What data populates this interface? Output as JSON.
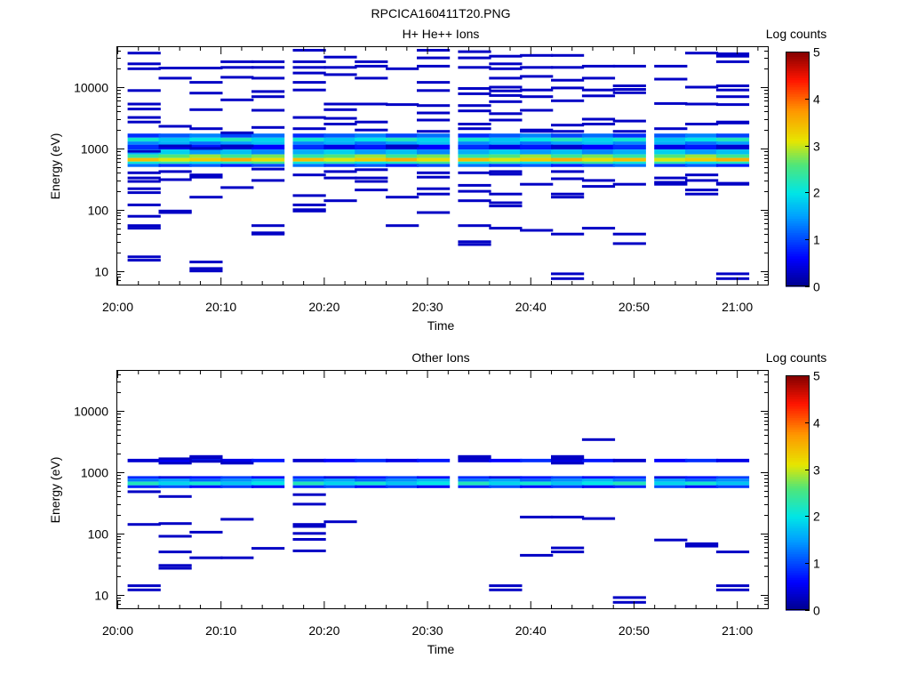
{
  "title": "RPCICA160411T20.PNG",
  "colorbar": {
    "label": "Log counts",
    "ticks": [
      "0",
      "1",
      "2",
      "3",
      "4",
      "5"
    ],
    "range": [
      0,
      5
    ]
  },
  "chart_data": [
    {
      "type": "heatmap",
      "title": "H+ He++ Ions",
      "xlabel": "Time",
      "ylabel": "Energy (eV)",
      "x_tick_labels": [
        "20:00",
        "20:10",
        "20:20",
        "20:30",
        "20:40",
        "20:50",
        "21:00"
      ],
      "x_range_minutes": [
        0,
        63
      ],
      "y_scale": "log",
      "y_range": [
        6,
        45000
      ],
      "y_tick_labels": [
        "10",
        "100",
        "1000",
        "10000"
      ],
      "grid": false,
      "value_unit": "log counts",
      "time_bin_starts": [
        "20:01",
        "20:04",
        "20:07",
        "20:10",
        "20:13",
        "20:17",
        "20:20",
        "20:23",
        "20:26",
        "20:29",
        "20:33",
        "20:36",
        "20:39",
        "20:42",
        "20:45",
        "20:48",
        "20:52",
        "20:55",
        "20:58"
      ],
      "time_bin_minutes": 3.2,
      "persistent_bands": [
        {
          "e_low": 1500,
          "e_high": 1750,
          "value": 1.1
        },
        {
          "e_low": 1300,
          "e_high": 1500,
          "value": 2.0
        },
        {
          "e_low": 1150,
          "e_high": 1300,
          "value": 1.5
        },
        {
          "e_low": 960,
          "e_high": 1150,
          "value": 0.6
        },
        {
          "e_low": 800,
          "e_high": 960,
          "value": 1.6
        },
        {
          "e_low": 700,
          "e_high": 800,
          "value": 2.6
        },
        {
          "e_low": 610,
          "e_high": 700,
          "value": 3.3
        },
        {
          "e_low": 560,
          "e_high": 610,
          "value": 2.2
        },
        {
          "e_low": 500,
          "e_high": 560,
          "value": 1.0
        }
      ],
      "sparse_cells": [
        {
          "t": "20:01",
          "energies": [
            36000,
            24000,
            20000,
            8800,
            5300,
            4400,
            3200,
            2700,
            900,
            400,
            330,
            290,
            220,
            190,
            120,
            78,
            55,
            50,
            17,
            15
          ],
          "value": 0.3
        },
        {
          "t": "20:04",
          "energies": [
            20500,
            14000,
            2300,
            1100,
            420,
            310,
            95,
            90
          ],
          "value": 0.3
        },
        {
          "t": "20:07",
          "energies": [
            20500,
            12000,
            8000,
            4300,
            2100,
            1000,
            370,
            340,
            160,
            14,
            11,
            10
          ],
          "value": 0.3
        },
        {
          "t": "20:10",
          "energies": [
            26000,
            21000,
            14500,
            6200,
            1800,
            1100,
            230
          ],
          "value": 0.3
        },
        {
          "t": "20:13",
          "energies": [
            26000,
            21000,
            14000,
            8500,
            7000,
            4200,
            2200,
            460,
            300,
            55,
            42,
            40
          ],
          "value": 0.3
        },
        {
          "t": "20:17",
          "energies": [
            40000,
            26000,
            21000,
            17000,
            12000,
            9000,
            3200,
            2100,
            370,
            170,
            120,
            100,
            95
          ],
          "value": 0.3
        },
        {
          "t": "20:20",
          "energies": [
            31000,
            21000,
            16000,
            5300,
            4300,
            3100,
            2500,
            420,
            330,
            140
          ],
          "value": 0.3
        },
        {
          "t": "20:23",
          "energies": [
            26000,
            22000,
            14000,
            5300,
            2700,
            2000,
            450,
            330,
            290,
            210
          ],
          "value": 0.3
        },
        {
          "t": "20:26",
          "energies": [
            20000,
            5200,
            1100,
            160,
            55
          ],
          "value": 0.3
        },
        {
          "t": "20:29",
          "energies": [
            40000,
            30000,
            22000,
            12000,
            8800,
            5000,
            3800,
            2900,
            1900,
            400,
            340,
            220,
            180,
            90
          ],
          "value": 0.3
        },
        {
          "t": "20:33",
          "energies": [
            38000,
            30000,
            21000,
            9500,
            7800,
            5000,
            4100,
            2500,
            2100,
            400,
            250,
            200,
            140,
            55,
            30,
            27
          ],
          "value": 0.3
        },
        {
          "t": "20:36",
          "energies": [
            32000,
            24000,
            20000,
            14000,
            10000,
            8700,
            7300,
            5800,
            3700,
            2900,
            420,
            380,
            180,
            130,
            115,
            50
          ],
          "value": 0.3
        },
        {
          "t": "20:39",
          "energies": [
            33000,
            21000,
            15000,
            9000,
            7000,
            4200,
            2000,
            1900,
            260,
            46
          ],
          "value": 0.3
        },
        {
          "t": "20:42",
          "energies": [
            33000,
            21000,
            13000,
            9700,
            6000,
            2400,
            1900,
            420,
            320,
            180,
            160,
            40,
            9,
            7.5
          ],
          "value": 0.3
        },
        {
          "t": "20:45",
          "energies": [
            22000,
            14000,
            9000,
            7200,
            3000,
            2500,
            300,
            240,
            50
          ],
          "value": 0.3
        },
        {
          "t": "20:48",
          "energies": [
            22000,
            10500,
            9200,
            8100,
            2800,
            1900,
            260,
            40,
            28
          ],
          "value": 0.3
        },
        {
          "t": "20:52",
          "energies": [
            22000,
            13500,
            5400,
            2100,
            330,
            280,
            260
          ],
          "value": 0.3
        },
        {
          "t": "20:55",
          "energies": [
            36000,
            10000,
            5300,
            2500,
            370,
            300,
            210,
            180
          ],
          "value": 0.3
        },
        {
          "t": "20:58",
          "energies": [
            35000,
            32000,
            26000,
            10500,
            9000,
            7000,
            5200,
            2700,
            2600,
            270,
            260,
            9,
            7.5
          ],
          "value": 0.3
        }
      ]
    },
    {
      "type": "heatmap",
      "title": "Other Ions",
      "xlabel": "Time",
      "ylabel": "Energy (eV)",
      "x_tick_labels": [
        "20:00",
        "20:10",
        "20:20",
        "20:30",
        "20:40",
        "20:50",
        "21:00"
      ],
      "x_range_minutes": [
        0,
        63
      ],
      "y_scale": "log",
      "y_range": [
        6,
        45000
      ],
      "y_tick_labels": [
        "10",
        "100",
        "1000",
        "10000"
      ],
      "grid": false,
      "value_unit": "log counts",
      "time_bin_starts": [
        "20:01",
        "20:04",
        "20:07",
        "20:10",
        "20:13",
        "20:17",
        "20:20",
        "20:23",
        "20:26",
        "20:29",
        "20:33",
        "20:36",
        "20:39",
        "20:42",
        "20:45",
        "20:48",
        "20:52",
        "20:55",
        "20:58"
      ],
      "time_bin_minutes": 3.2,
      "persistent_bands": [
        {
          "e_low": 1450,
          "e_high": 1650,
          "value": 0.6
        },
        {
          "e_low": 780,
          "e_high": 860,
          "value": 0.7
        },
        {
          "e_low": 700,
          "e_high": 780,
          "value": 1.4
        },
        {
          "e_low": 610,
          "e_high": 700,
          "value": 2.0
        },
        {
          "e_low": 550,
          "e_high": 610,
          "value": 0.8
        }
      ],
      "sparse_cells": [
        {
          "t": "20:01",
          "energies": [
            480,
            140,
            14,
            12
          ],
          "value": 0.3
        },
        {
          "t": "20:04",
          "energies": [
            1650,
            1400,
            400,
            145,
            90,
            50,
            30,
            27
          ],
          "value": 0.3
        },
        {
          "t": "20:07",
          "energies": [
            1800,
            1700,
            1500,
            105,
            40
          ],
          "value": 0.3
        },
        {
          "t": "20:10",
          "energies": [
            1400,
            170,
            40
          ],
          "value": 0.3
        },
        {
          "t": "20:13",
          "energies": [
            57
          ],
          "value": 0.3
        },
        {
          "t": "20:17",
          "energies": [
            430,
            300,
            140,
            130,
            100,
            80,
            52
          ],
          "value": 0.3
        },
        {
          "t": "20:20",
          "energies": [
            155
          ],
          "value": 0.3
        },
        {
          "t": "20:33",
          "energies": [
            1800,
            1700
          ],
          "value": 0.3
        },
        {
          "t": "20:36",
          "energies": [
            14,
            12
          ],
          "value": 0.3
        },
        {
          "t": "20:39",
          "energies": [
            44,
            185
          ],
          "value": 0.3
        },
        {
          "t": "20:42",
          "energies": [
            1800,
            1650,
            1400,
            185,
            58,
            50
          ],
          "value": 0.3
        },
        {
          "t": "20:45",
          "energies": [
            3400,
            175
          ],
          "value": 0.3
        },
        {
          "t": "20:48",
          "energies": [
            9,
            7.5
          ],
          "value": 0.3
        },
        {
          "t": "20:52",
          "energies": [
            78
          ],
          "value": 0.3
        },
        {
          "t": "20:55",
          "energies": [
            68,
            62
          ],
          "value": 0.3
        },
        {
          "t": "20:58",
          "energies": [
            50,
            14,
            12
          ],
          "value": 0.3
        }
      ]
    }
  ]
}
